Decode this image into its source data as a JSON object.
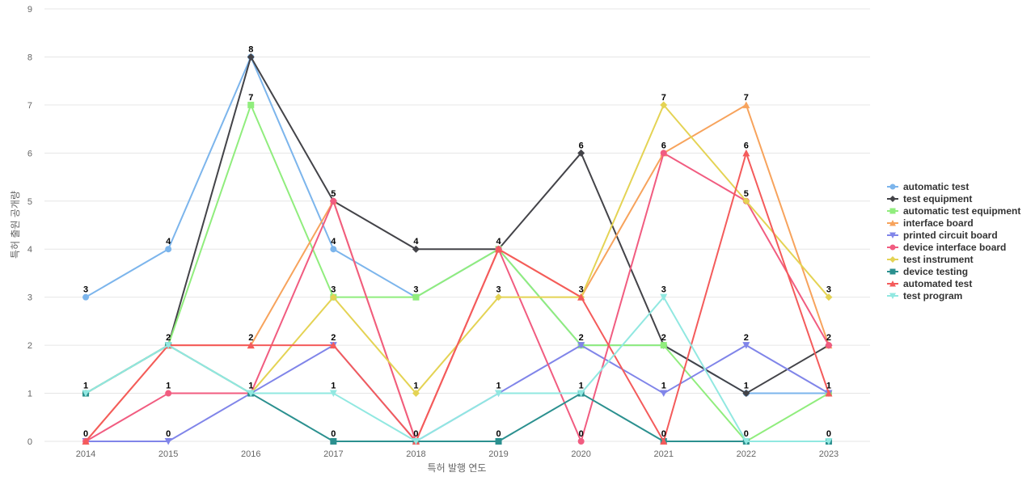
{
  "chart_data": {
    "type": "line",
    "title": "",
    "xlabel": "특허 발행 연도",
    "ylabel": "특허 출원 공개량",
    "ylim": [
      0,
      9
    ],
    "yticks": [
      "0",
      "1",
      "2",
      "3",
      "4",
      "5",
      "6",
      "7",
      "8",
      "9"
    ],
    "categories": [
      "2014",
      "2015",
      "2016",
      "2017",
      "2018",
      "2019",
      "2020",
      "2021",
      "2022",
      "2023"
    ],
    "grid": true,
    "legend_position": "right",
    "series": [
      {
        "name": "automatic test",
        "color": "#7cb5ec",
        "marker": "circle",
        "values": [
          3,
          4,
          8,
          4,
          3,
          4,
          2,
          2,
          1,
          1
        ]
      },
      {
        "name": "test equipment",
        "color": "#434348",
        "marker": "diamond",
        "values": [
          1,
          2,
          8,
          5,
          4,
          4,
          6,
          2,
          1,
          2
        ]
      },
      {
        "name": "automatic test equipment",
        "color": "#90ed7d",
        "marker": "square",
        "values": [
          1,
          2,
          7,
          3,
          3,
          4,
          2,
          2,
          0,
          1
        ]
      },
      {
        "name": "interface board",
        "color": "#f7a35c",
        "marker": "triangle",
        "values": [
          0,
          2,
          2,
          5,
          0,
          4,
          3,
          6,
          7,
          2
        ]
      },
      {
        "name": "printed circuit board",
        "color": "#8085e9",
        "marker": "triangle-down",
        "values": [
          0,
          0,
          1,
          2,
          0,
          1,
          2,
          1,
          2,
          1
        ]
      },
      {
        "name": "device interface board",
        "color": "#f15c80",
        "marker": "circle",
        "values": [
          0,
          1,
          1,
          5,
          0,
          4,
          0,
          6,
          5,
          2
        ]
      },
      {
        "name": "test instrument",
        "color": "#e4d354",
        "marker": "diamond",
        "values": [
          1,
          2,
          1,
          3,
          1,
          3,
          3,
          7,
          5,
          3
        ]
      },
      {
        "name": "device testing",
        "color": "#2b908f",
        "marker": "square",
        "values": [
          1,
          2,
          1,
          0,
          0,
          0,
          1,
          0,
          0,
          0
        ]
      },
      {
        "name": "automated test",
        "color": "#f45b5b",
        "marker": "triangle",
        "values": [
          0,
          2,
          2,
          2,
          0,
          4,
          3,
          0,
          6,
          1
        ]
      },
      {
        "name": "test program",
        "color": "#91e8e1",
        "marker": "triangle-down",
        "values": [
          1,
          2,
          1,
          1,
          0,
          1,
          1,
          3,
          0,
          0
        ]
      }
    ],
    "data_labels": [
      {
        "category": "2014",
        "series": "automatic test",
        "value": 3
      },
      {
        "category": "2014",
        "series": "test equipment",
        "value": 1
      },
      {
        "category": "2014",
        "series": "interface board",
        "value": 0
      },
      {
        "category": "2015",
        "series": "automatic test",
        "value": 4
      },
      {
        "category": "2015",
        "series": "test equipment",
        "value": 2
      },
      {
        "category": "2015",
        "series": "device interface board",
        "value": 1
      },
      {
        "category": "2015",
        "series": "printed circuit board",
        "value": 0
      },
      {
        "category": "2016",
        "series": "test equipment",
        "value": 8
      },
      {
        "category": "2016",
        "series": "automatic test equipment",
        "value": 7
      },
      {
        "category": "2016",
        "series": "interface board",
        "value": 2
      },
      {
        "category": "2016",
        "series": "printed circuit board",
        "value": 1
      },
      {
        "category": "2017",
        "series": "test equipment",
        "value": 5
      },
      {
        "category": "2017",
        "series": "automatic test",
        "value": 4
      },
      {
        "category": "2017",
        "series": "automatic test equipment",
        "value": 3
      },
      {
        "category": "2017",
        "series": "printed circuit board",
        "value": 2
      },
      {
        "category": "2017",
        "series": "test program",
        "value": 1
      },
      {
        "category": "2017",
        "series": "device testing",
        "value": 0
      },
      {
        "category": "2018",
        "series": "test equipment",
        "value": 4
      },
      {
        "category": "2018",
        "series": "automatic test",
        "value": 3
      },
      {
        "category": "2018",
        "series": "test instrument",
        "value": 1
      },
      {
        "category": "2018",
        "series": "interface board",
        "value": 0
      },
      {
        "category": "2019",
        "series": "automatic test",
        "value": 4
      },
      {
        "category": "2019",
        "series": "test instrument",
        "value": 3
      },
      {
        "category": "2019",
        "series": "printed circuit board",
        "value": 1
      },
      {
        "category": "2019",
        "series": "device testing",
        "value": 0
      },
      {
        "category": "2020",
        "series": "test equipment",
        "value": 6
      },
      {
        "category": "2020",
        "series": "interface board",
        "value": 3
      },
      {
        "category": "2020",
        "series": "automatic test",
        "value": 2
      },
      {
        "category": "2020",
        "series": "device testing",
        "value": 1
      },
      {
        "category": "2020",
        "series": "device interface board",
        "value": 0
      },
      {
        "category": "2021",
        "series": "test instrument",
        "value": 7
      },
      {
        "category": "2021",
        "series": "interface board",
        "value": 6
      },
      {
        "category": "2021",
        "series": "test program",
        "value": 3
      },
      {
        "category": "2021",
        "series": "automatic test",
        "value": 2
      },
      {
        "category": "2021",
        "series": "printed circuit board",
        "value": 1
      },
      {
        "category": "2021",
        "series": "device testing",
        "value": 0
      },
      {
        "category": "2022",
        "series": "interface board",
        "value": 7
      },
      {
        "category": "2022",
        "series": "automated test",
        "value": 6
      },
      {
        "category": "2022",
        "series": "test instrument",
        "value": 5
      },
      {
        "category": "2022",
        "series": "printed circuit board",
        "value": 2
      },
      {
        "category": "2022",
        "series": "automatic test",
        "value": 1
      },
      {
        "category": "2022",
        "series": "device testing",
        "value": 0
      },
      {
        "category": "2023",
        "series": "test instrument",
        "value": 3
      },
      {
        "category": "2023",
        "series": "test equipment",
        "value": 2
      },
      {
        "category": "2023",
        "series": "automatic test",
        "value": 1
      },
      {
        "category": "2023",
        "series": "test program",
        "value": 0
      }
    ]
  }
}
